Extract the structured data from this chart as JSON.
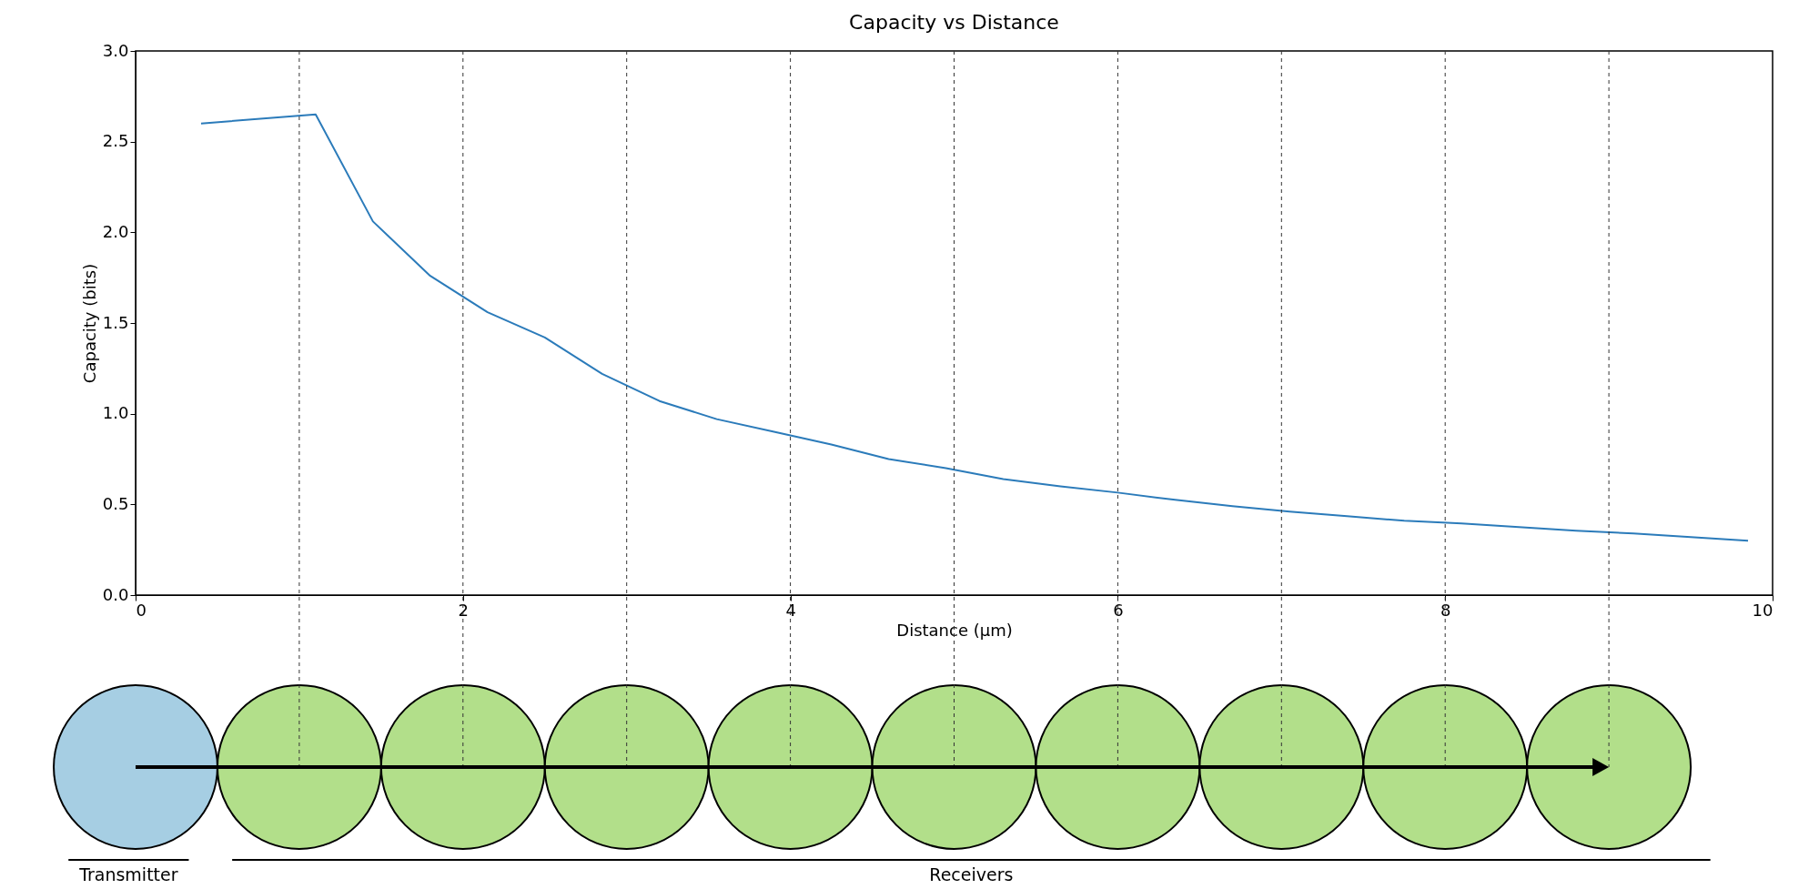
{
  "chart_data": {
    "type": "line",
    "title": "Capacity vs Distance",
    "xlabel": "Distance (μm)",
    "ylabel": "Capacity (bits)",
    "x": [
      0.4,
      1.1,
      1.45,
      1.8,
      2.15,
      2.5,
      2.85,
      3.2,
      3.55,
      3.9,
      4.25,
      4.6,
      4.95,
      5.3,
      5.65,
      6.0,
      6.35,
      6.7,
      7.05,
      7.4,
      7.75,
      8.1,
      8.45,
      8.8,
      9.15,
      9.5,
      9.85
    ],
    "series": [
      {
        "color": "#2b7bba",
        "values": [
          2.6,
          2.65,
          2.06,
          1.76,
          1.56,
          1.42,
          1.22,
          1.07,
          0.97,
          0.9,
          0.83,
          0.75,
          0.7,
          0.64,
          0.6,
          0.565,
          0.525,
          0.49,
          0.46,
          0.435,
          0.41,
          0.395,
          0.375,
          0.355,
          0.34,
          0.32,
          0.3
        ]
      }
    ],
    "xlim": [
      0,
      10
    ],
    "ylim": [
      0,
      3
    ],
    "xticks": [
      0,
      2,
      4,
      6,
      8,
      10
    ],
    "yticks": [
      {
        "value": 0,
        "label": "0.0"
      },
      {
        "value": 0.5,
        "label": "0.5"
      },
      {
        "value": 1,
        "label": "1.0"
      },
      {
        "value": 1.5,
        "label": "1.5"
      },
      {
        "value": 2,
        "label": "2.0"
      },
      {
        "value": 2.5,
        "label": "2.5"
      },
      {
        "value": 3,
        "label": "3.0"
      }
    ],
    "ref_lines": [
      {
        "axis": "x",
        "value": 1,
        "line_style": "dashed"
      },
      {
        "axis": "x",
        "value": 2,
        "line_style": "dashed"
      },
      {
        "axis": "x",
        "value": 3,
        "line_style": "dashed"
      },
      {
        "axis": "x",
        "value": 4,
        "line_style": "dashed"
      },
      {
        "axis": "x",
        "value": 5,
        "line_style": "dashed"
      },
      {
        "axis": "x",
        "value": 6,
        "line_style": "dashed"
      },
      {
        "axis": "x",
        "value": 7,
        "line_style": "dashed"
      },
      {
        "axis": "x",
        "value": 8,
        "line_style": "dashed"
      },
      {
        "axis": "x",
        "value": 9,
        "line_style": "dashed"
      }
    ],
    "annotations": [
      "Transmitter",
      "Receivers"
    ],
    "grid": false,
    "marker": "none",
    "line_style": "solid"
  }
}
